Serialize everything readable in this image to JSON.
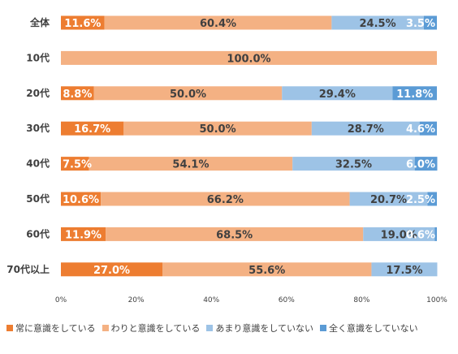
{
  "chart_data": {
    "type": "bar",
    "orientation": "horizontal",
    "stacked": "percent",
    "categories": [
      "全体",
      "10代",
      "20代",
      "30代",
      "40代",
      "50代",
      "60代",
      "70代以上"
    ],
    "series": [
      {
        "name": "常に意識をしている",
        "color": "#ed7d31",
        "values": [
          11.6,
          0,
          8.8,
          16.7,
          7.5,
          10.6,
          11.9,
          27.0
        ],
        "labels": [
          "11.6%",
          "",
          "8.8%",
          "16.7%",
          "7.5%",
          "10.6%",
          "11.9%",
          "27.0%"
        ]
      },
      {
        "name": "わりと意識をしている",
        "color": "#f4b183",
        "values": [
          60.4,
          100.0,
          50.0,
          50.0,
          54.1,
          66.2,
          68.5,
          55.6
        ],
        "labels": [
          "60.4%",
          "100.0%",
          "50.0%",
          "50.0%",
          "54.1%",
          "66.2%",
          "68.5%",
          "55.6%"
        ]
      },
      {
        "name": "あまり意識をしていない",
        "color": "#9dc3e6",
        "values": [
          24.5,
          0,
          29.4,
          28.7,
          32.5,
          20.7,
          19.0,
          17.5
        ],
        "labels": [
          "24.5%",
          "",
          "29.4%",
          "28.7%",
          "32.5%",
          "20.7%",
          "19.0%",
          "17.5%"
        ]
      },
      {
        "name": "全く意識をしていない",
        "color": "#5b9bd5",
        "values": [
          3.5,
          0,
          11.8,
          4.6,
          6.0,
          2.5,
          0.6,
          0
        ],
        "labels": [
          "3.5%",
          "",
          "11.8%",
          "4.6%",
          "6.0%",
          "2.5%",
          "0.6%",
          ""
        ]
      }
    ],
    "xlim": [
      0,
      100
    ],
    "x_ticks": [
      "0%",
      "20%",
      "40%",
      "60%",
      "80%",
      "100%"
    ],
    "legend_position": "bottom",
    "grid": false
  }
}
